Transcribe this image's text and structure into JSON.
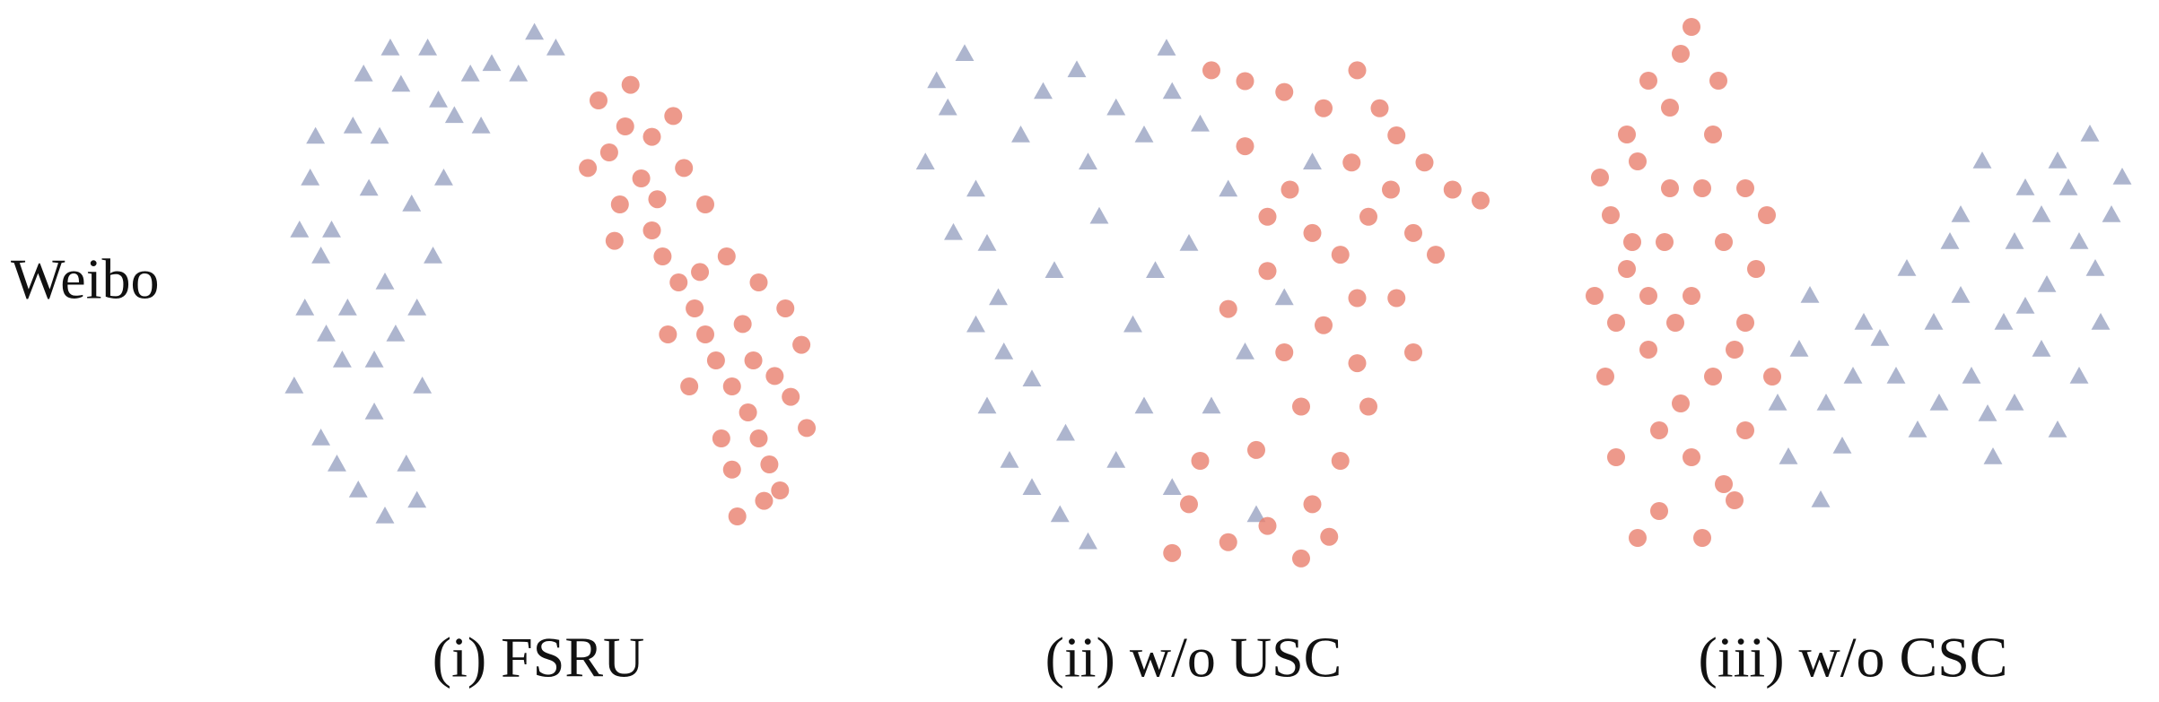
{
  "row_label": "Weibo",
  "chart_data": [
    {
      "type": "scatter",
      "title": "(i) FSRU",
      "xlim": [
        0,
        100
      ],
      "ylim": [
        0,
        100
      ],
      "series": [
        {
          "color": "#98a3c2",
          "marker": "triangle",
          "x": [
            3,
            5,
            8,
            10,
            12,
            6,
            15,
            18,
            20,
            22,
            14,
            25,
            8,
            17,
            24,
            20,
            11,
            4,
            27,
            13,
            19,
            23,
            28,
            30,
            33,
            36,
            40,
            45,
            48,
            52,
            38,
            29,
            26,
            9,
            16,
            21,
            7,
            31,
            18,
            26
          ],
          "values": [
            30,
            45,
            20,
            60,
            35,
            70,
            10,
            25,
            50,
            40,
            80,
            65,
            55,
            68,
            15,
            5,
            15,
            60,
            30,
            45,
            78,
            88,
            95,
            85,
            82,
            90,
            92,
            90,
            98,
            95,
            80,
            55,
            45,
            40,
            90,
            95,
            78,
            70,
            35,
            8
          ]
        },
        {
          "color": "#e8806e",
          "marker": "circle",
          "x": [
            60,
            62,
            65,
            68,
            64,
            70,
            72,
            75,
            78,
            80,
            82,
            85,
            88,
            90,
            92,
            94,
            86,
            96,
            98,
            95,
            90,
            84,
            80,
            76,
            70,
            66,
            58,
            73,
            77,
            83,
            89,
            93,
            87,
            79,
            71,
            63,
            91,
            85,
            99,
            74
          ],
          "values": [
            85,
            75,
            80,
            70,
            65,
            60,
            55,
            50,
            45,
            40,
            35,
            30,
            25,
            20,
            15,
            10,
            5,
            28,
            38,
            45,
            50,
            55,
            65,
            72,
            78,
            88,
            72,
            40,
            30,
            20,
            35,
            32,
            42,
            52,
            66,
            58,
            8,
            14,
            22,
            82
          ]
        }
      ]
    },
    {
      "type": "scatter",
      "title": "(ii) w/o USC",
      "xlim": [
        0,
        100
      ],
      "ylim": [
        0,
        100
      ],
      "series": [
        {
          "color": "#98a3c2",
          "marker": "triangle",
          "x": [
            1,
            5,
            8,
            10,
            12,
            14,
            15,
            12,
            16,
            20,
            25,
            18,
            22,
            28,
            30,
            35,
            40,
            45,
            50,
            55,
            48,
            42,
            38,
            32,
            10,
            6,
            20,
            26,
            35,
            45,
            60,
            58,
            65,
            52,
            30,
            40,
            70,
            24,
            3,
            44
          ],
          "values": [
            75,
            85,
            95,
            70,
            60,
            50,
            40,
            30,
            20,
            15,
            10,
            80,
            88,
            92,
            75,
            85,
            80,
            88,
            82,
            70,
            60,
            55,
            45,
            65,
            45,
            62,
            35,
            25,
            20,
            15,
            10,
            40,
            50,
            30,
            5,
            30,
            75,
            55,
            90,
            96
          ]
        },
        {
          "color": "#e8806e",
          "marker": "circle",
          "x": [
            52,
            58,
            65,
            72,
            78,
            82,
            85,
            90,
            95,
            100,
            88,
            80,
            75,
            70,
            62,
            55,
            65,
            72,
            78,
            80,
            75,
            70,
            62,
            55,
            48,
            45,
            68,
            73,
            60,
            85,
            92,
            66,
            58,
            77,
            84,
            68,
            50,
            88,
            78,
            62
          ],
          "values": [
            92,
            90,
            88,
            85,
            92,
            85,
            80,
            75,
            70,
            68,
            62,
            65,
            58,
            62,
            55,
            48,
            40,
            45,
            38,
            30,
            20,
            12,
            8,
            5,
            12,
            3,
            2,
            6,
            22,
            50,
            58,
            70,
            78,
            75,
            70,
            30,
            20,
            40,
            50,
            65
          ]
        }
      ]
    },
    {
      "type": "scatter",
      "title": "(iii) w/o CSC",
      "xlim": [
        0,
        100
      ],
      "ylim": [
        0,
        100
      ],
      "series": [
        {
          "color": "#e8806e",
          "marker": "circle",
          "x": [
            2,
            4,
            5,
            6,
            8,
            10,
            12,
            14,
            15,
            16,
            18,
            20,
            18,
            20,
            22,
            24,
            26,
            28,
            30,
            26,
            22,
            10,
            6,
            12,
            8,
            25,
            30,
            32,
            35,
            14,
            3,
            17,
            28,
            20,
            9,
            34,
            24,
            16,
            12,
            30
          ],
          "values": [
            50,
            35,
            65,
            20,
            55,
            75,
            40,
            10,
            60,
            85,
            95,
            100,
            30,
            50,
            70,
            80,
            60,
            40,
            25,
            15,
            5,
            5,
            45,
            90,
            80,
            90,
            70,
            55,
            35,
            25,
            72,
            45,
            12,
            20,
            60,
            65,
            35,
            70,
            50,
            45
          ]
        },
        {
          "color": "#98a3c2",
          "marker": "triangle",
          "x": [
            40,
            45,
            50,
            55,
            48,
            42,
            52,
            58,
            62,
            65,
            68,
            70,
            72,
            75,
            78,
            80,
            82,
            85,
            88,
            90,
            92,
            95,
            98,
            100,
            96,
            92,
            88,
            85,
            80,
            76,
            70,
            74,
            66,
            60,
            36,
            38,
            44,
            94,
            86,
            82
          ],
          "values": [
            40,
            30,
            35,
            42,
            22,
            50,
            45,
            35,
            25,
            45,
            60,
            50,
            35,
            28,
            45,
            60,
            70,
            65,
            75,
            70,
            60,
            55,
            65,
            72,
            45,
            35,
            25,
            40,
            30,
            20,
            65,
            75,
            30,
            55,
            30,
            20,
            12,
            80,
            52,
            48
          ]
        }
      ]
    }
  ]
}
